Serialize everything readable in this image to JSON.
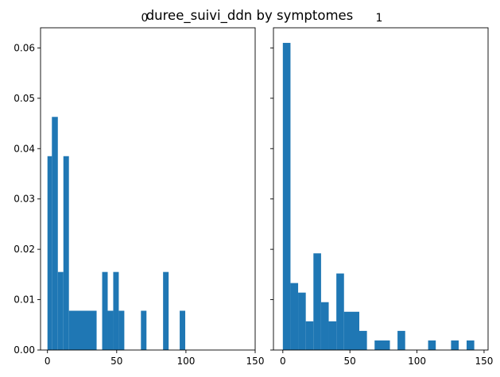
{
  "figure": {
    "suptitle": "duree_suivi_ddn by symptomes"
  },
  "chart_data": [
    {
      "type": "bar",
      "title": "0",
      "bar_color": "#1f77b4",
      "xlim": [
        -5,
        150
      ],
      "ylim": [
        0,
        0.064
      ],
      "xticks": [
        0,
        50,
        100,
        150
      ],
      "yticks": [
        0.0,
        0.01,
        0.02,
        0.03,
        0.04,
        0.05,
        0.06
      ],
      "ytick_labels": [
        "0.00",
        "0.01",
        "0.02",
        "0.03",
        "0.04",
        "0.05",
        "0.06"
      ],
      "bins": [
        {
          "x0": 0,
          "x1": 3.2,
          "y": 0.0385
        },
        {
          "x0": 3.2,
          "x1": 7.5,
          "y": 0.0463
        },
        {
          "x0": 7.5,
          "x1": 11.5,
          "y": 0.0155
        },
        {
          "x0": 11.5,
          "x1": 15.5,
          "y": 0.0385
        },
        {
          "x0": 15.5,
          "x1": 35.5,
          "y": 0.0078
        },
        {
          "x0": 39.5,
          "x1": 43.5,
          "y": 0.0155
        },
        {
          "x0": 43.5,
          "x1": 47.5,
          "y": 0.0078
        },
        {
          "x0": 47.5,
          "x1": 51.5,
          "y": 0.0155
        },
        {
          "x0": 51.5,
          "x1": 55.5,
          "y": 0.0078
        },
        {
          "x0": 67.5,
          "x1": 71.5,
          "y": 0.0078
        },
        {
          "x0": 83.5,
          "x1": 87.5,
          "y": 0.0155
        },
        {
          "x0": 95.5,
          "x1": 99.5,
          "y": 0.0078
        }
      ]
    },
    {
      "type": "bar",
      "title": "1",
      "bar_color": "#1f77b4",
      "xlim": [
        -7,
        153
      ],
      "ylim": [
        0,
        0.064
      ],
      "xticks": [
        0,
        50,
        100,
        150
      ],
      "bins": [
        {
          "x0": 0,
          "x1": 5.7,
          "y": 0.061
        },
        {
          "x0": 5.7,
          "x1": 11.4,
          "y": 0.0133
        },
        {
          "x0": 11.4,
          "x1": 17.1,
          "y": 0.0114
        },
        {
          "x0": 17.1,
          "x1": 22.8,
          "y": 0.0057
        },
        {
          "x0": 22.8,
          "x1": 28.5,
          "y": 0.0192
        },
        {
          "x0": 28.5,
          "x1": 34.2,
          "y": 0.0095
        },
        {
          "x0": 34.2,
          "x1": 39.9,
          "y": 0.0057
        },
        {
          "x0": 39.9,
          "x1": 45.6,
          "y": 0.0152
        },
        {
          "x0": 45.6,
          "x1": 57.0,
          "y": 0.0076
        },
        {
          "x0": 57.0,
          "x1": 62.7,
          "y": 0.0038
        },
        {
          "x0": 68.4,
          "x1": 79.8,
          "y": 0.0019
        },
        {
          "x0": 85.5,
          "x1": 91.2,
          "y": 0.0038
        },
        {
          "x0": 108.3,
          "x1": 114.0,
          "y": 0.0019
        },
        {
          "x0": 125.4,
          "x1": 131.1,
          "y": 0.0019
        },
        {
          "x0": 137.0,
          "x1": 142.7,
          "y": 0.0019
        }
      ]
    }
  ]
}
